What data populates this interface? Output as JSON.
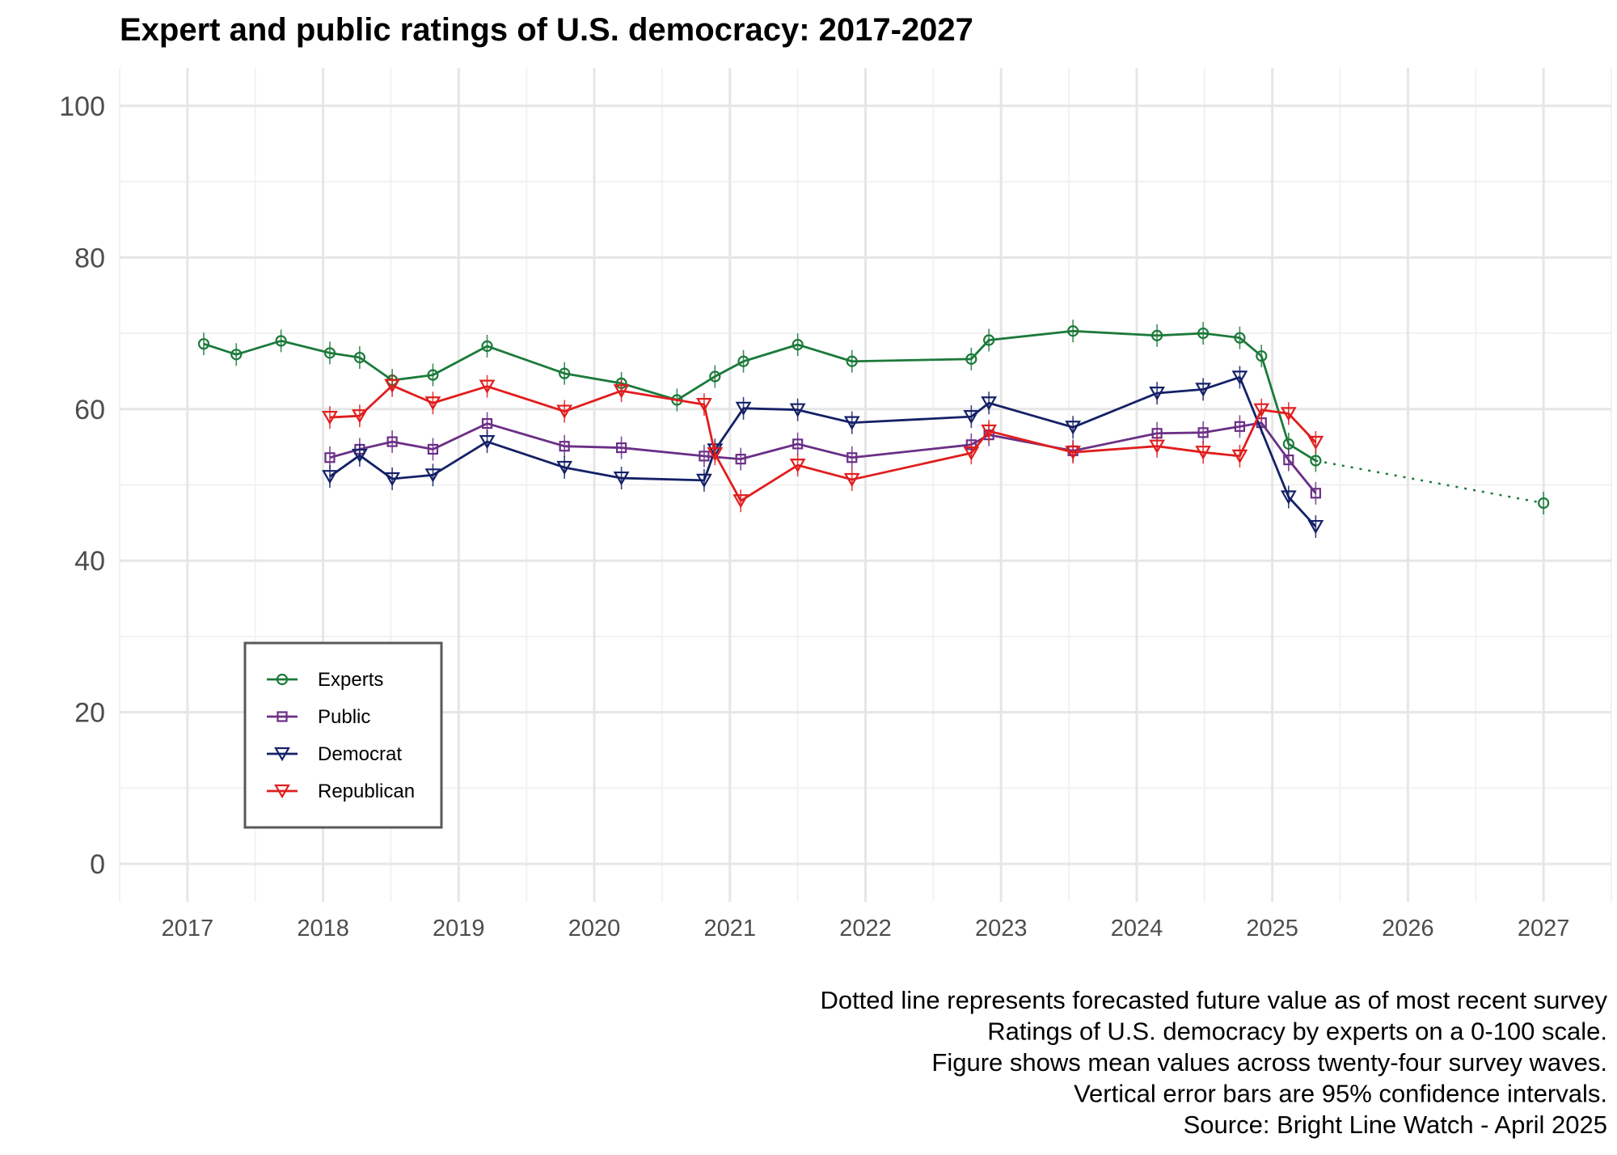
{
  "chart_data": {
    "type": "line",
    "title": "Expert and public ratings of U.S. democracy: 2017-2027",
    "xlabel": "",
    "ylabel": "",
    "xlim": [
      2016.5,
      2027.5
    ],
    "ylim": [
      -5,
      105
    ],
    "x_ticks": [
      "2017",
      "2018",
      "2019",
      "2020",
      "2021",
      "2022",
      "2023",
      "2024",
      "2025",
      "2026",
      "2027"
    ],
    "y_ticks": [
      "0",
      "20",
      "40",
      "60",
      "80",
      "100"
    ],
    "grid": true,
    "legend_position": "bottom-left",
    "series": [
      {
        "name": "Experts",
        "color": "#1b7a3a",
        "marker": "circle",
        "x": [
          2017.12,
          2017.36,
          2017.69,
          2018.05,
          2018.27,
          2018.51,
          2018.81,
          2019.21,
          2019.78,
          2020.2,
          2020.61,
          2020.89,
          2021.1,
          2021.5,
          2021.9,
          2022.78,
          2022.91,
          2023.53,
          2024.15,
          2024.49,
          2024.76,
          2024.92,
          2025.12,
          2025.32
        ],
        "y": [
          68.6,
          67.2,
          69.0,
          67.4,
          66.8,
          63.8,
          64.5,
          68.3,
          64.7,
          63.4,
          61.2,
          64.3,
          66.3,
          68.5,
          66.3,
          66.6,
          69.1,
          70.3,
          69.7,
          70.0,
          69.4,
          67.0,
          55.4,
          53.2
        ]
      },
      {
        "name": "Public",
        "color": "#6b2f86",
        "marker": "square",
        "x": [
          2018.05,
          2018.27,
          2018.51,
          2018.81,
          2019.21,
          2019.78,
          2020.2,
          2020.81,
          2021.08,
          2021.5,
          2021.9,
          2022.78,
          2022.91,
          2023.53,
          2024.15,
          2024.49,
          2024.76,
          2024.92,
          2025.12,
          2025.32
        ],
        "y": [
          53.6,
          54.7,
          55.7,
          54.7,
          58.1,
          55.1,
          54.9,
          53.8,
          53.4,
          55.4,
          53.6,
          55.3,
          56.6,
          54.5,
          56.8,
          56.9,
          57.7,
          58.2,
          53.3,
          48.9
        ]
      },
      {
        "name": "Democrat",
        "color": "#142167",
        "marker": "triangle-down",
        "x": [
          2018.05,
          2018.27,
          2018.51,
          2018.81,
          2019.21,
          2019.78,
          2020.2,
          2020.81,
          2020.89,
          2021.1,
          2021.5,
          2021.9,
          2022.78,
          2022.91,
          2023.53,
          2024.15,
          2024.49,
          2024.76,
          2025.12,
          2025.32
        ],
        "y": [
          51.1,
          53.9,
          50.8,
          51.3,
          55.7,
          52.3,
          50.9,
          50.6,
          54.6,
          60.1,
          59.9,
          58.2,
          59.0,
          60.8,
          57.6,
          62.1,
          62.6,
          64.2,
          48.4,
          44.5
        ]
      },
      {
        "name": "Republican",
        "color": "#e11d1d",
        "marker": "triangle-down",
        "x": [
          2018.05,
          2018.27,
          2018.51,
          2018.81,
          2019.21,
          2019.78,
          2020.2,
          2020.81,
          2020.89,
          2021.08,
          2021.5,
          2021.9,
          2022.78,
          2022.91,
          2023.53,
          2024.15,
          2024.49,
          2024.76,
          2024.92,
          2025.12,
          2025.32
        ],
        "y": [
          58.9,
          59.1,
          63.1,
          60.8,
          63.0,
          59.7,
          62.4,
          60.6,
          54.1,
          47.9,
          52.6,
          50.7,
          54.2,
          57.1,
          54.3,
          55.1,
          54.3,
          53.8,
          59.9,
          59.4,
          55.6
        ]
      },
      {
        "name": "",
        "color": "#1b7a3a",
        "style": "dotted",
        "marker": "circle",
        "x": [
          2025.32,
          2027.0
        ],
        "y": [
          53.2,
          47.6
        ]
      }
    ],
    "annotations": [
      "Dotted line represents forecasted future value as of most recent survey",
      "Ratings of U.S. democracy by experts on a 0-100 scale.",
      "Figure shows mean values across twenty-four survey waves.",
      "Vertical error bars are 95% confidence intervals.",
      "Source: Bright Line Watch - April 2025"
    ]
  }
}
